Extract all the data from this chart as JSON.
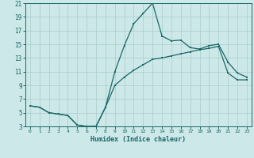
{
  "xlabel": "Humidex (Indice chaleur)",
  "bg_color": "#cce8e8",
  "grid_color": "#aacccc",
  "line_color": "#1a6666",
  "xlim": [
    -0.5,
    23.5
  ],
  "ylim": [
    3,
    21
  ],
  "xticks": [
    0,
    1,
    2,
    3,
    4,
    5,
    6,
    7,
    8,
    9,
    10,
    11,
    12,
    13,
    14,
    15,
    16,
    17,
    18,
    19,
    20,
    21,
    22,
    23
  ],
  "yticks": [
    3,
    5,
    7,
    9,
    11,
    13,
    15,
    17,
    19,
    21
  ],
  "line1_x": [
    0,
    1,
    2,
    3,
    4,
    5,
    6,
    7,
    8,
    9,
    10,
    11,
    12,
    13,
    14,
    15,
    16,
    17,
    18,
    19,
    20,
    21,
    22,
    23
  ],
  "line1_y": [
    6.0,
    5.8,
    5.0,
    4.8,
    4.6,
    3.2,
    3.0,
    3.0,
    5.8,
    11.0,
    14.8,
    18.0,
    19.5,
    21.0,
    16.2,
    15.5,
    15.6,
    14.5,
    14.3,
    14.8,
    15.0,
    12.4,
    10.8,
    10.2
  ],
  "line2_x": [
    0,
    1,
    2,
    3,
    4,
    5,
    6,
    7,
    8,
    9,
    10,
    11,
    12,
    13,
    14,
    15,
    16,
    17,
    18,
    19,
    20,
    21,
    22,
    23
  ],
  "line2_y": [
    6.0,
    5.8,
    5.0,
    4.8,
    4.6,
    3.2,
    3.0,
    3.0,
    5.8,
    9.0,
    10.2,
    11.2,
    12.0,
    12.8,
    13.0,
    13.3,
    13.6,
    13.9,
    14.2,
    14.4,
    14.7,
    10.8,
    9.8,
    9.8
  ]
}
